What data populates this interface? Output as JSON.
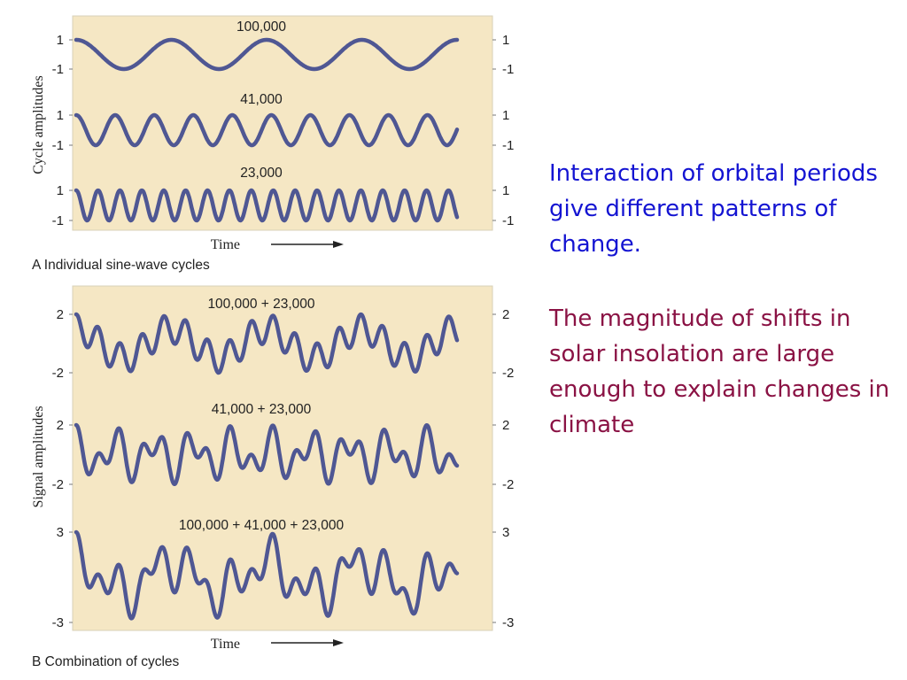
{
  "chart_data": [
    {
      "type": "line",
      "panel": "A",
      "caption": "A  Individual sine-wave cycles",
      "ylabel": "Cycle amplitudes",
      "xlabel": "Time",
      "x_range": [
        0,
        400000
      ],
      "series": [
        {
          "name": "100,000",
          "components": [
            100000
          ],
          "ylim": [
            -1,
            1
          ],
          "ticks": [
            "1",
            "-1"
          ],
          "sampled_peaks_x": [
            0,
            200000,
            400000
          ],
          "sampled_troughs_x": [
            50000,
            250000
          ]
        },
        {
          "name": "41,000",
          "components": [
            41000
          ],
          "ylim": [
            -1,
            1
          ],
          "ticks": [
            "1",
            "-1"
          ]
        },
        {
          "name": "23,000",
          "components": [
            23000
          ],
          "ylim": [
            -1,
            1
          ],
          "ticks": [
            "1",
            "-1"
          ]
        }
      ]
    },
    {
      "type": "line",
      "panel": "B",
      "caption": "B  Combination of cycles",
      "ylabel": "Signal amplitudes",
      "xlabel": "Time",
      "x_range": [
        0,
        400000
      ],
      "series": [
        {
          "name": "100,000 + 23,000",
          "components": [
            100000,
            23000
          ],
          "ylim": [
            -2,
            2
          ],
          "ticks": [
            "2",
            "-2"
          ]
        },
        {
          "name": "41,000 + 23,000",
          "components": [
            41000,
            23000
          ],
          "ylim": [
            -2,
            2
          ],
          "ticks": [
            "2",
            "-2"
          ]
        },
        {
          "name": "100,000 + 41,000 + 23,000",
          "components": [
            100000,
            41000,
            23000
          ],
          "ylim": [
            -3,
            3
          ],
          "ticks": [
            "3",
            "-3"
          ]
        }
      ]
    }
  ],
  "text": {
    "note1": "Interaction of orbital periods give different patterns of change.",
    "note2": "The magnitude of shifts in solar insolation are large enough to explain changes in climate"
  },
  "colors": {
    "wave": "#4f5793",
    "panel_background": "#f5e7c4",
    "note1_text": "#1414d2",
    "note2_text": "#8a1244"
  }
}
